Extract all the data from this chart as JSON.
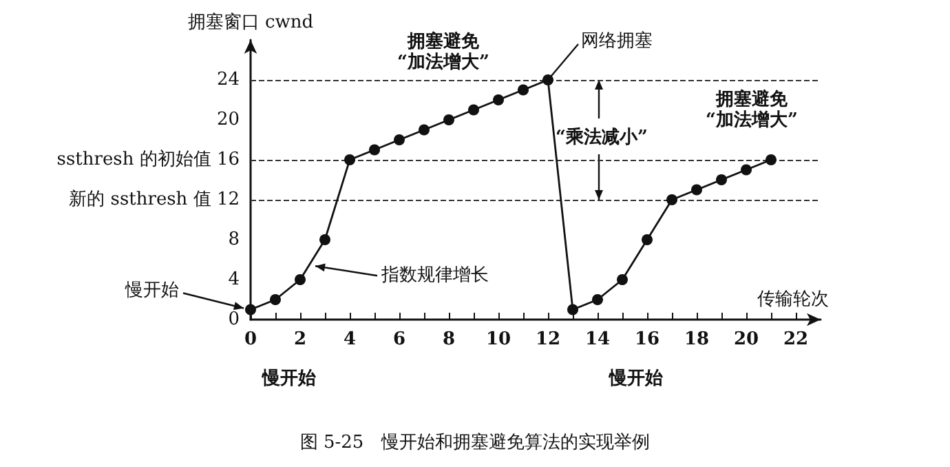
{
  "chart_data": {
    "type": "line",
    "title": "图 5-25　慢开始和拥塞避免算法的实现举例",
    "xlabel": "传输轮次",
    "ylabel": "拥塞窗口 cwnd",
    "x": [
      0,
      1,
      2,
      3,
      4,
      5,
      6,
      7,
      8,
      9,
      10,
      11,
      12,
      13,
      14,
      15,
      16,
      17,
      18,
      19,
      20,
      21
    ],
    "series": [
      {
        "color": "#111111",
        "values": [
          1,
          2,
          4,
          8,
          16,
          17,
          18,
          19,
          20,
          21,
          22,
          23,
          24,
          1,
          2,
          4,
          8,
          12,
          13,
          14,
          15,
          16
        ]
      }
    ],
    "xlim": [
      0,
      23
    ],
    "xticks": [
      0,
      {
        "value": 1,
        "label": null
      },
      2,
      {
        "value": 3,
        "label": null
      },
      4,
      {
        "value": 5,
        "label": null
      },
      6,
      {
        "value": 7,
        "label": null
      },
      8,
      {
        "value": 9,
        "label": null
      },
      10,
      {
        "value": 11,
        "label": null
      },
      12,
      {
        "value": 13,
        "label": null
      },
      14,
      {
        "value": 15,
        "label": null
      },
      16,
      {
        "value": 17,
        "label": null
      },
      18,
      {
        "value": 19,
        "label": null
      },
      20,
      {
        "value": 21,
        "label": null
      },
      22
    ],
    "ylim": [
      0,
      28
    ],
    "yticks": [
      0,
      4,
      8,
      {
        "value": 12,
        "label": "新的 ssthresh 值 12"
      },
      {
        "value": 16,
        "label": "ssthresh 的初始值 16"
      },
      20,
      24
    ],
    "ref_lines": [
      {
        "axis": "y",
        "value": 24,
        "line_style": "dashed",
        "color": "#333333"
      },
      {
        "axis": "y",
        "value": 16,
        "line_style": "dashed",
        "color": "#333333"
      },
      {
        "axis": "y",
        "value": 12,
        "line_style": "dashed",
        "color": "#333333"
      }
    ],
    "annotations": [
      "拥塞避免\n“加法增大”",
      {
        "text": "网络拥塞",
        "x": 12,
        "y": 24
      },
      {
        "text": "“乘法减小”",
        "x": 14,
        "y": 24
      },
      "拥塞避免\n“加法增大”",
      {
        "text": "慢开始",
        "x": 0,
        "y": 1
      },
      {
        "text": "指数规律增长",
        "x": 2.5,
        "y": 5.5
      },
      "慢开始",
      "慢开始"
    ],
    "grid": false,
    "marker": "circle",
    "line_style": "solid"
  }
}
